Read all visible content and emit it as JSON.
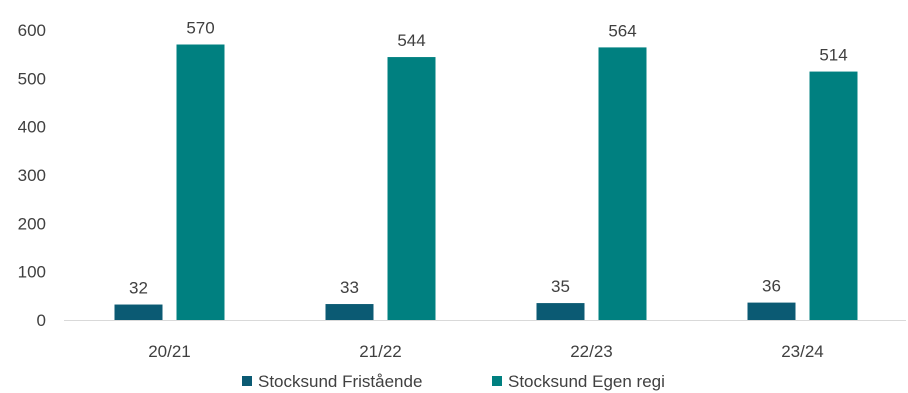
{
  "chart_data": {
    "type": "bar",
    "categories": [
      "20/21",
      "21/22",
      "22/23",
      "23/24"
    ],
    "series": [
      {
        "name": "Stocksund Fristående",
        "values": [
          32,
          33,
          35,
          36
        ],
        "color": "#0B5A73"
      },
      {
        "name": "Stocksund Egen regi",
        "values": [
          570,
          544,
          564,
          514
        ],
        "color": "#008080"
      }
    ],
    "ylim": [
      0,
      600
    ],
    "yticks": [
      0,
      100,
      200,
      300,
      400,
      500,
      600
    ],
    "grid": false,
    "legend": "bottom",
    "data_labels": true
  }
}
